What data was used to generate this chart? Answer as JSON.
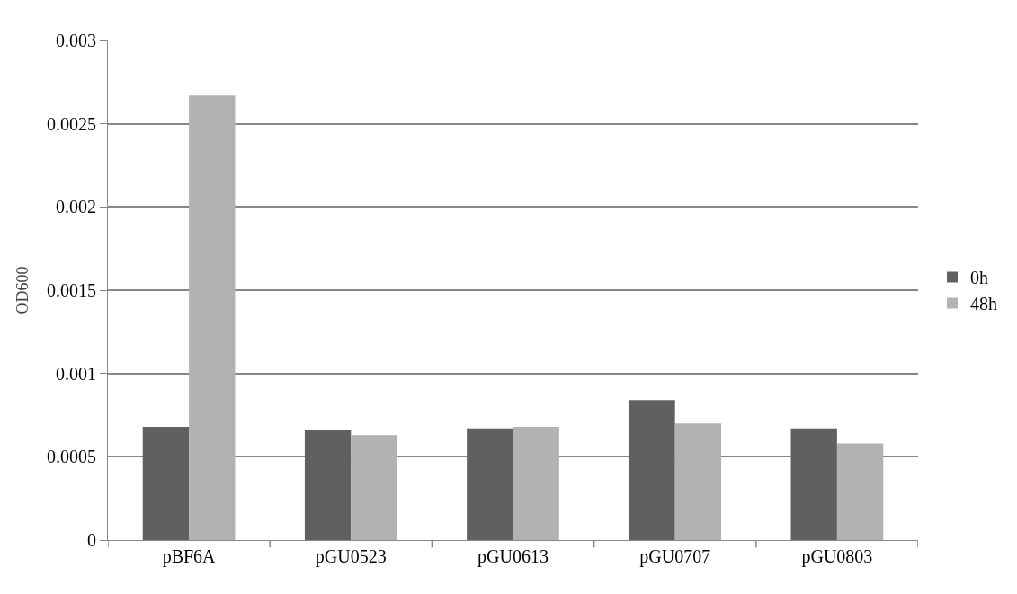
{
  "chart_data": {
    "type": "bar",
    "ylabel": "OD600",
    "categories": [
      "pBF6A",
      "pGU0523",
      "pGU0613",
      "pGU0707",
      "pGU0803"
    ],
    "series": [
      {
        "name": "0h",
        "color": "#606060",
        "values": [
          0.00068,
          0.00066,
          0.00067,
          0.00084,
          0.00067
        ]
      },
      {
        "name": "48h",
        "color": "#b2b2b2",
        "values": [
          0.00267,
          0.00063,
          0.00068,
          0.0007,
          0.00058
        ]
      }
    ],
    "ylim": [
      0,
      0.003
    ],
    "yticks": [
      0,
      0.0005,
      0.001,
      0.0015,
      0.002,
      0.0025,
      0.003
    ],
    "grid": "y",
    "legend": "right"
  }
}
